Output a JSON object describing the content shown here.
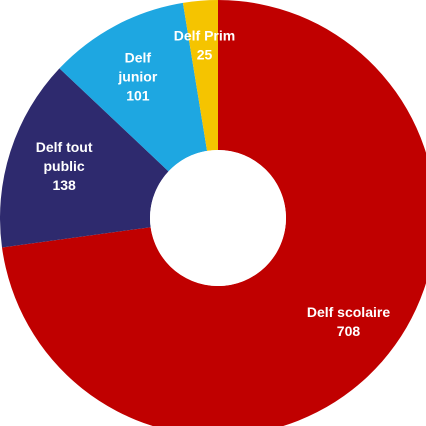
{
  "chart_data": {
    "type": "pie",
    "donut": true,
    "categories": [
      "Delf scolaire",
      "Delf tout public",
      "Delf junior",
      "Delf Prim"
    ],
    "values": [
      708,
      138,
      101,
      25
    ],
    "colors": [
      "#c00000",
      "#2e2a6e",
      "#1ea7e1",
      "#f5c400"
    ],
    "slices": [
      {
        "name_lines": [
          "Delf scolaire"
        ],
        "value": 708,
        "color": "#c00000"
      },
      {
        "name_lines": [
          "Delf tout",
          "public"
        ],
        "value": 138,
        "color": "#2e2a6e"
      },
      {
        "name_lines": [
          "Delf",
          "junior"
        ],
        "value": 101,
        "color": "#1ea7e1"
      },
      {
        "name_lines": [
          "Delf Prim"
        ],
        "value": 25,
        "color": "#f5c400"
      }
    ],
    "title": "",
    "legend": "none",
    "data_labels": "inside"
  }
}
